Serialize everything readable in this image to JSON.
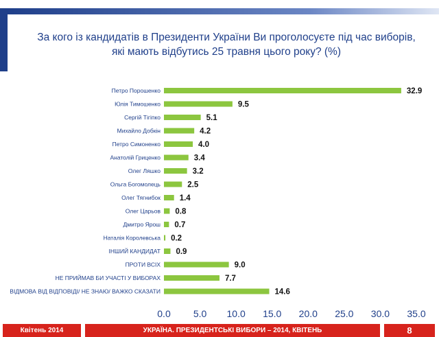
{
  "header": {
    "accent": "#1f3f8a"
  },
  "chart_data": {
    "type": "bar",
    "orientation": "horizontal",
    "title_lines": [
      "За кого із кандидатів в Президенти України Ви проголосуєте під час виборів,",
      "які мають відбутись 25 травня цього року? (%)"
    ],
    "categories": [
      "Петро Порошенко",
      "Юлія Тимошенко",
      "Сергій Тігіпко",
      "Михайло Добкін",
      "Петро Симоненко",
      "Анатолій Гриценко",
      "Олег Ляшко",
      "Ольга Богомолець",
      "Олег Тягнибок",
      "Олег Царьов",
      "Дмитро Ярош",
      "Наталія Королевська",
      "ІНШИЙ КАНДИДАТ",
      "ПРОТИ ВСІХ",
      "НЕ ПРИЙМАВ БИ УЧАСТІ У ВИБОРАХ",
      "ВІДМОВА ВІД ВІДПОВІДІ/ НЕ ЗНАЮ/ ВАЖКО СКАЗАТИ"
    ],
    "values": [
      32.9,
      9.5,
      5.1,
      4.2,
      4.0,
      3.4,
      3.2,
      2.5,
      1.4,
      0.8,
      0.7,
      0.2,
      0.9,
      9.0,
      7.7,
      14.6
    ],
    "value_labels": [
      "32.9",
      "9.5",
      "5.1",
      "4.2",
      "4.0",
      "3.4",
      "3.2",
      "2.5",
      "1.4",
      "0.8",
      "0.7",
      "0.2",
      "0.9",
      "9.0",
      "7.7",
      "14.6"
    ],
    "xlim": [
      0,
      35
    ],
    "x_ticks": [
      "0.0",
      "5.0",
      "10.0",
      "15.0",
      "20.0",
      "25.0",
      "30.0",
      "35.0"
    ],
    "bar_color": "#8cc63f",
    "grid": false,
    "legend": "none"
  },
  "footer": {
    "date": "Квітень 2014",
    "caption": "УКРАЇНА. ПРЕЗИДЕНТСЬКІ ВИБОРИ – 2014, КВІТЕНЬ",
    "page_number": "8",
    "color": "#d7231c"
  }
}
